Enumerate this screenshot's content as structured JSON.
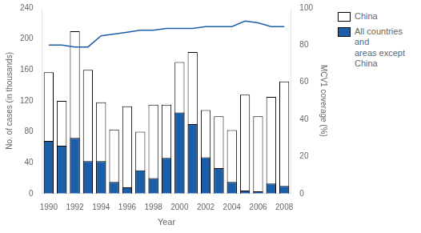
{
  "chart_data": {
    "type": "bar",
    "x_label": "Year",
    "y_label": "No. of cases (in thousands)",
    "y2_label": "MCV1 coverage (%)",
    "categories": [
      "1990",
      null,
      "1992",
      null,
      "1994",
      null,
      "1996",
      null,
      "1998",
      null,
      "2000",
      null,
      "2002",
      null,
      "2004",
      null,
      "2006",
      null,
      "2008"
    ],
    "series": [
      {
        "name": "China",
        "color": "#ffffff",
        "values": [
          157,
          120,
          210,
          160,
          118,
          83,
          113,
          80,
          115,
          115,
          170,
          183,
          108,
          100,
          82,
          128,
          100,
          125,
          145
        ]
      },
      {
        "name": "All countries and\nareas except\nChina",
        "color": "#1a5fa8",
        "values": [
          68,
          62,
          72,
          42,
          42,
          15,
          8,
          30,
          20,
          46,
          105,
          90,
          47,
          33,
          15,
          4,
          3,
          13,
          10
        ]
      },
      {
        "type": "line",
        "axis": "y2",
        "color": "#1a5fa8",
        "values": [
          80,
          80,
          79,
          79,
          85,
          86,
          87,
          88,
          88,
          89,
          89,
          89,
          90,
          90,
          90,
          93,
          92,
          90,
          90
        ]
      }
    ],
    "ylim": [
      0,
      240
    ],
    "yticks": [
      0,
      40,
      80,
      120,
      160,
      200,
      240
    ],
    "y2lim": [
      0,
      100
    ],
    "y2ticks": [
      0,
      20,
      40,
      60,
      80,
      100
    ],
    "grid": false,
    "legend": "upper right"
  }
}
